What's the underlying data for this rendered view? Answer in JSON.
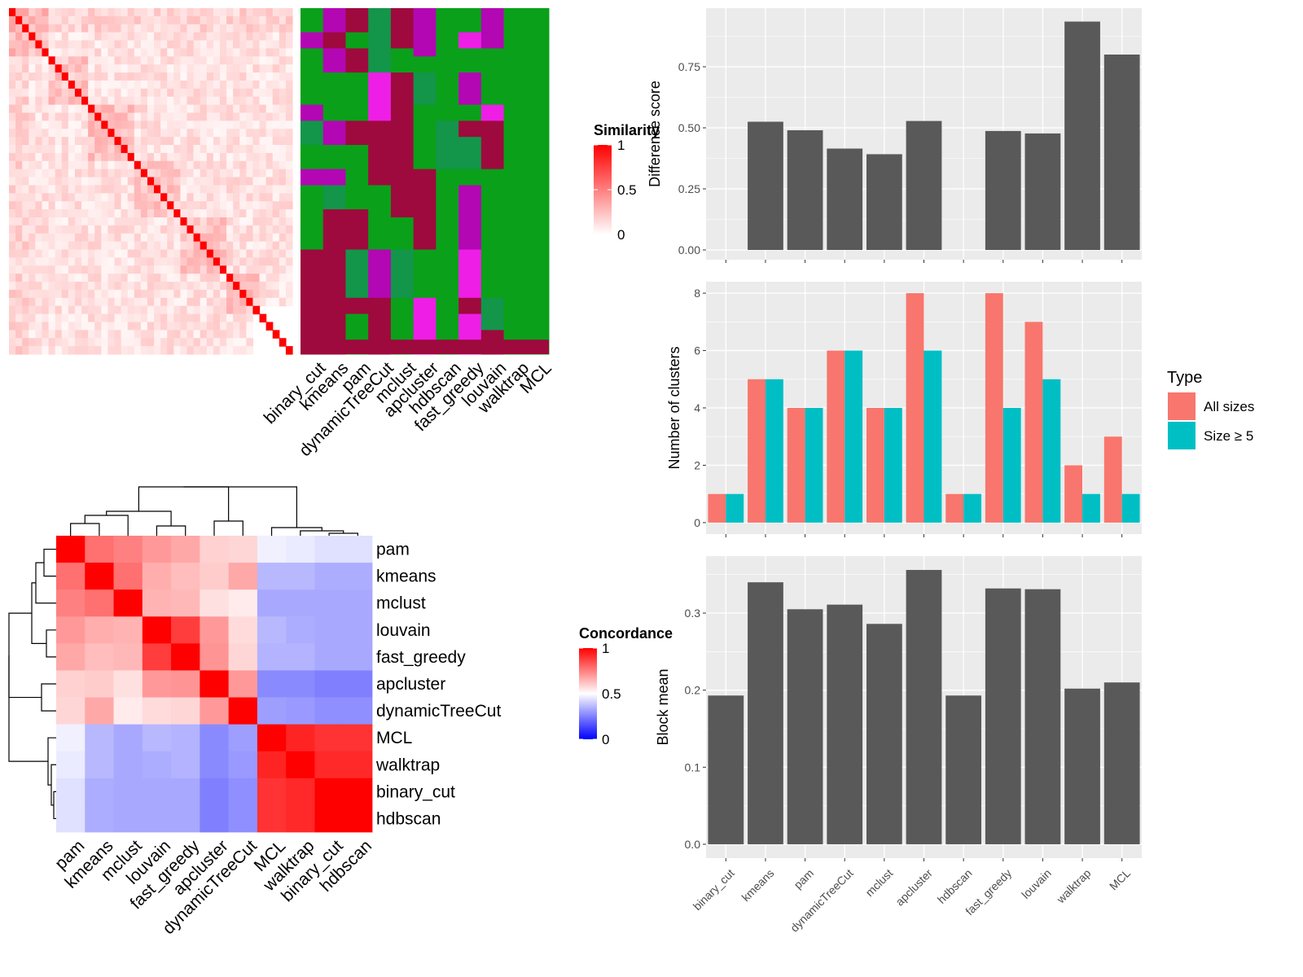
{
  "chart_data": [
    {
      "id": "similarity-heatmap",
      "type": "heatmap",
      "n": 43,
      "legend": {
        "title": "Similarity",
        "ticks": [
          "1",
          "0.5",
          "0"
        ]
      },
      "colors": {
        "low": "#ffffff",
        "high": "#ff0000"
      }
    },
    {
      "id": "class-annotation",
      "type": "heatmap",
      "columns": [
        "binary_cut",
        "kmeans",
        "pam",
        "dynamicTreeCut",
        "mclust",
        "apcluster",
        "hdbscan",
        "fast_greedy",
        "louvain",
        "walktrap",
        "MCL"
      ],
      "palette": [
        "#0aa01a",
        "#13954a",
        "#9e0a3d",
        "#b307b3",
        "#ee1ee6",
        "#d50aa6"
      ]
    },
    {
      "id": "concordance-heatmap",
      "type": "heatmap",
      "rows": [
        "pam",
        "kmeans",
        "mclust",
        "louvain",
        "fast_greedy",
        "apcluster",
        "dynamicTreeCut",
        "MCL",
        "walktrap",
        "binary_cut",
        "hdbscan"
      ],
      "columns": [
        "pam",
        "kmeans",
        "mclust",
        "louvain",
        "fast_greedy",
        "apcluster",
        "dynamicTreeCut",
        "MCL",
        "walktrap",
        "binary_cut",
        "hdbscan"
      ],
      "values": [
        [
          1.0,
          0.78,
          0.75,
          0.7,
          0.67,
          0.59,
          0.58,
          0.47,
          0.46,
          0.44,
          0.44
        ],
        [
          0.78,
          1.0,
          0.78,
          0.66,
          0.63,
          0.6,
          0.67,
          0.36,
          0.36,
          0.34,
          0.34
        ],
        [
          0.75,
          0.78,
          1.0,
          0.65,
          0.64,
          0.56,
          0.54,
          0.33,
          0.33,
          0.33,
          0.33
        ],
        [
          0.7,
          0.66,
          0.65,
          1.0,
          0.88,
          0.7,
          0.57,
          0.36,
          0.34,
          0.33,
          0.33
        ],
        [
          0.67,
          0.63,
          0.64,
          0.88,
          1.0,
          0.71,
          0.58,
          0.35,
          0.35,
          0.33,
          0.33
        ],
        [
          0.59,
          0.6,
          0.56,
          0.7,
          0.71,
          1.0,
          0.7,
          0.27,
          0.27,
          0.25,
          0.25
        ],
        [
          0.58,
          0.67,
          0.54,
          0.57,
          0.58,
          0.7,
          1.0,
          0.31,
          0.3,
          0.28,
          0.28
        ],
        [
          0.47,
          0.36,
          0.33,
          0.36,
          0.35,
          0.27,
          0.31,
          1.0,
          0.93,
          0.9,
          0.9
        ],
        [
          0.46,
          0.36,
          0.33,
          0.34,
          0.35,
          0.27,
          0.3,
          0.93,
          1.0,
          0.92,
          0.92
        ],
        [
          0.44,
          0.34,
          0.33,
          0.33,
          0.33,
          0.25,
          0.28,
          0.9,
          0.92,
          1.0,
          1.0
        ],
        [
          0.44,
          0.34,
          0.33,
          0.33,
          0.33,
          0.25,
          0.28,
          0.9,
          0.92,
          1.0,
          1.0
        ]
      ],
      "legend": {
        "title": "Concordance",
        "ticks": [
          "1",
          "0.5",
          "0"
        ]
      }
    },
    {
      "id": "difference-score",
      "type": "bar",
      "categories": [
        "binary_cut",
        "kmeans",
        "pam",
        "dynamicTreeCut",
        "mclust",
        "apcluster",
        "hdbscan",
        "fast_greedy",
        "louvain",
        "walktrap",
        "MCL"
      ],
      "values": [
        null,
        0.525,
        0.49,
        0.415,
        0.392,
        0.528,
        null,
        0.487,
        0.477,
        0.935,
        0.8
      ],
      "ylabel": "Difference score",
      "ylim": [
        -0.04,
        0.99
      ],
      "yticks": [
        "0.00",
        "0.25",
        "0.50",
        "0.75"
      ],
      "ytick_values": [
        0,
        0.25,
        0.5,
        0.75
      ]
    },
    {
      "id": "number-of-clusters",
      "type": "bar",
      "categories": [
        "binary_cut",
        "kmeans",
        "pam",
        "dynamicTreeCut",
        "mclust",
        "apcluster",
        "hdbscan",
        "fast_greedy",
        "louvain",
        "walktrap",
        "MCL"
      ],
      "series": [
        {
          "name": "All sizes",
          "values": [
            1,
            5,
            4,
            6,
            4,
            8,
            1,
            8,
            7,
            2,
            3
          ]
        },
        {
          "name": "Size ≥ 5",
          "values": [
            1,
            5,
            4,
            6,
            4,
            6,
            1,
            4,
            5,
            1,
            1
          ]
        }
      ],
      "ylabel": "Number of clusters",
      "ylim": [
        -0.4,
        8.4
      ],
      "yticks": [
        "0",
        "2",
        "4",
        "6",
        "8"
      ],
      "ytick_values": [
        0,
        2,
        4,
        6,
        8
      ],
      "legend": {
        "title": "Type",
        "placement": "right"
      }
    },
    {
      "id": "block-mean",
      "type": "bar",
      "categories": [
        "binary_cut",
        "kmeans",
        "pam",
        "dynamicTreeCut",
        "mclust",
        "apcluster",
        "hdbscan",
        "fast_greedy",
        "louvain",
        "walktrap",
        "MCL"
      ],
      "values": [
        0.193,
        0.34,
        0.305,
        0.311,
        0.286,
        0.356,
        0.193,
        0.332,
        0.331,
        0.202,
        0.21
      ],
      "ylabel": "Block mean",
      "ylim": [
        -0.018,
        0.374
      ],
      "yticks": [
        "0.0",
        "0.1",
        "0.2",
        "0.3"
      ],
      "ytick_values": [
        0,
        0.1,
        0.2,
        0.3
      ]
    }
  ],
  "colors": {
    "panel_bg": "#ebebeb",
    "grid": "#ffffff",
    "bar": "#595959",
    "all_sizes": "#f8766d",
    "size_ge_5": "#00bfc4",
    "tree": "#000000"
  }
}
